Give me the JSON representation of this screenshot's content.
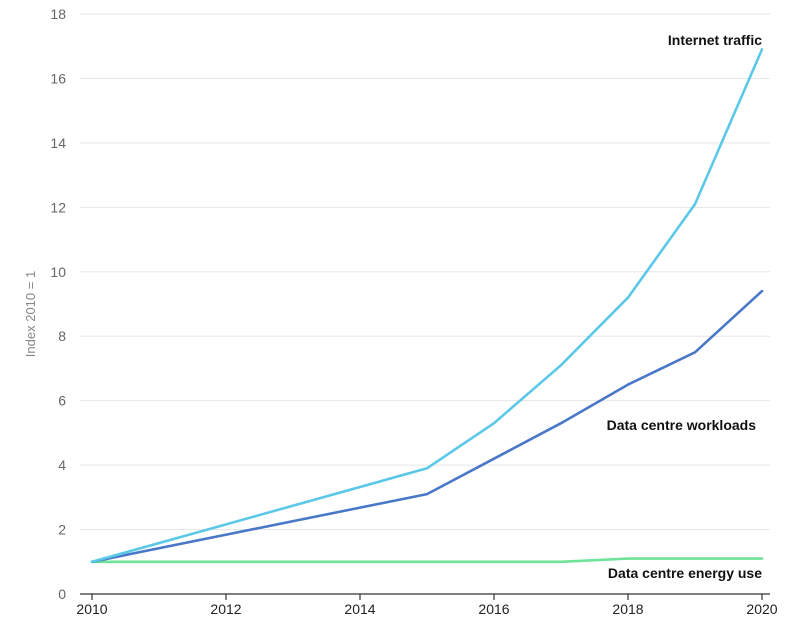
{
  "chart_data": {
    "type": "line",
    "title": "",
    "xlabel": "",
    "ylabel": "Index 2010 = 1",
    "xlim": [
      2010,
      2020
    ],
    "ylim": [
      0,
      18
    ],
    "x_ticks": [
      "2010",
      "2012",
      "2014",
      "2016",
      "2018",
      "2020"
    ],
    "y_ticks": [
      "0",
      "2",
      "4",
      "6",
      "8",
      "10",
      "12",
      "14",
      "16",
      "18"
    ],
    "grid": "horizontal",
    "legend": "inline labels at right",
    "series": [
      {
        "name": "Internet traffic",
        "color": "#5bc8e8",
        "x": [
          2010,
          2015,
          2016,
          2017,
          2018,
          2019,
          2020
        ],
        "y": [
          1.0,
          3.9,
          5.3,
          7.1,
          9.2,
          12.1,
          16.9
        ]
      },
      {
        "name": "Data centre workloads",
        "color": "#4a78c8",
        "x": [
          2010,
          2015,
          2016,
          2017,
          2018,
          2019,
          2020
        ],
        "y": [
          1.0,
          3.1,
          4.2,
          5.3,
          6.5,
          7.5,
          9.4
        ]
      },
      {
        "name": "Data centre energy use",
        "color": "#6fe39a",
        "x": [
          2010,
          2015,
          2016,
          2017,
          2018,
          2019,
          2020
        ],
        "y": [
          1.0,
          1.0,
          1.0,
          1.0,
          1.1,
          1.1,
          1.1
        ]
      }
    ]
  }
}
